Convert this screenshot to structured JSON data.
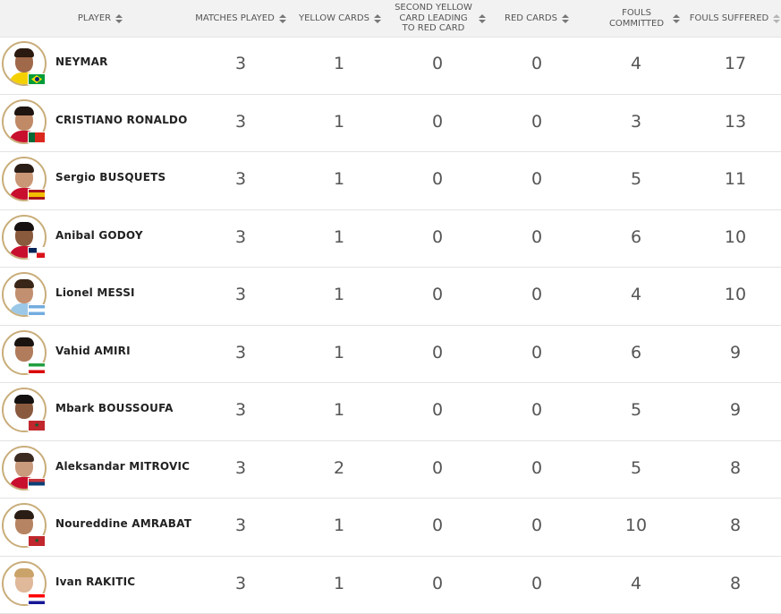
{
  "columns": {
    "player": "PLAYER",
    "matches": "MATCHES PLAYED",
    "yellow": "YELLOW CARDS",
    "second_yellow": "SECOND YELLOW CARD LEADING TO RED CARD",
    "red": "RED CARDS",
    "fouls_committed": "FOULS COMMITTED",
    "fouls_suffered": "FOULS SUFFERED"
  },
  "rows": [
    {
      "name": "NEYMAR",
      "matches": "3",
      "yellow": "1",
      "second_yellow": "0",
      "red": "0",
      "fouls_committed": "4",
      "fouls_suffered": "17",
      "skin": "#a0694a",
      "hair": "#2a1a10",
      "shirt": "#f5d000",
      "flag": "brazil-flag"
    },
    {
      "name": "CRISTIANO RONALDO",
      "matches": "3",
      "yellow": "1",
      "second_yellow": "0",
      "red": "0",
      "fouls_committed": "3",
      "fouls_suffered": "13",
      "skin": "#c08a67",
      "hair": "#1e1410",
      "shirt": "#c8102e",
      "flag": "portugal-flag"
    },
    {
      "name": "Sergio BUSQUETS",
      "matches": "3",
      "yellow": "1",
      "second_yellow": "0",
      "red": "0",
      "fouls_committed": "5",
      "fouls_suffered": "11",
      "skin": "#c99676",
      "hair": "#2a1d15",
      "shirt": "#c8102e",
      "flag": "spain-flag"
    },
    {
      "name": "Anibal GODOY",
      "matches": "3",
      "yellow": "1",
      "second_yellow": "0",
      "red": "0",
      "fouls_committed": "6",
      "fouls_suffered": "10",
      "skin": "#8a5a3c",
      "hair": "#161010",
      "shirt": "#c8102e",
      "flag": "panama-flag"
    },
    {
      "name": "Lionel MESSI",
      "matches": "3",
      "yellow": "1",
      "second_yellow": "0",
      "red": "0",
      "fouls_committed": "4",
      "fouls_suffered": "10",
      "skin": "#c29070",
      "hair": "#3a2618",
      "shirt": "#9cc8e8",
      "flag": "argentina-flag"
    },
    {
      "name": "Vahid AMIRI",
      "matches": "3",
      "yellow": "1",
      "second_yellow": "0",
      "red": "0",
      "fouls_committed": "6",
      "fouls_suffered": "9",
      "skin": "#b07c5c",
      "hair": "#1a1410",
      "shirt": "#ffffff",
      "flag": "iran-flag"
    },
    {
      "name": "Mbark BOUSSOUFA",
      "matches": "3",
      "yellow": "1",
      "second_yellow": "0",
      "red": "0",
      "fouls_committed": "5",
      "fouls_suffered": "9",
      "skin": "#8a5a3e",
      "hair": "#151010",
      "shirt": "#ffffff",
      "flag": "morocco-flag"
    },
    {
      "name": "Aleksandar MITROVIC",
      "matches": "3",
      "yellow": "2",
      "second_yellow": "0",
      "red": "0",
      "fouls_committed": "5",
      "fouls_suffered": "8",
      "skin": "#c99a7c",
      "hair": "#3b2a20",
      "shirt": "#c8102e",
      "flag": "serbia-flag"
    },
    {
      "name": "Noureddine AMRABAT",
      "matches": "3",
      "yellow": "1",
      "second_yellow": "0",
      "red": "0",
      "fouls_committed": "10",
      "fouls_suffered": "8",
      "skin": "#b68462",
      "hair": "#2a1d15",
      "shirt": "#ffffff",
      "flag": "morocco-flag"
    },
    {
      "name": "Ivan RAKITIC",
      "matches": "3",
      "yellow": "1",
      "second_yellow": "0",
      "red": "0",
      "fouls_committed": "4",
      "fouls_suffered": "8",
      "skin": "#e0b89a",
      "hair": "#c9a36a",
      "shirt": "#ffffff",
      "flag": "croatia-flag"
    }
  ]
}
